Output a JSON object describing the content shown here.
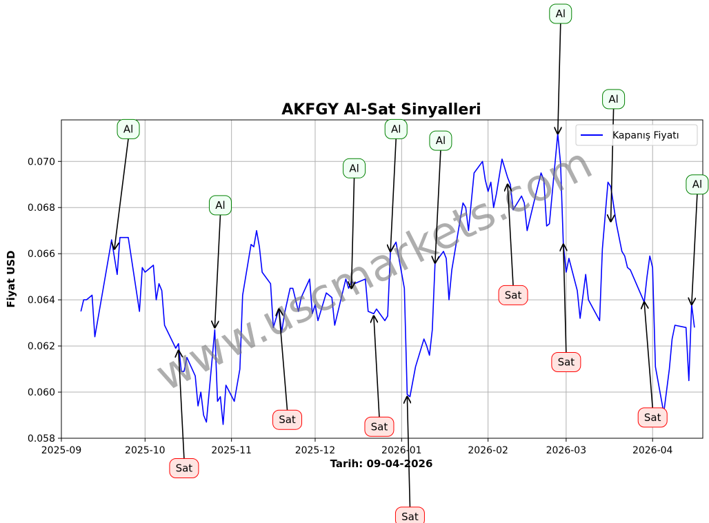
{
  "chart_data": {
    "type": "line",
    "title": "AKFGY Al-Sat Sinyalleri",
    "xlabel": "Tarih: 09-04-2026",
    "ylabel": "Fiyat USD",
    "grid": true,
    "legend_position": "top-right",
    "ylim": [
      0.058,
      0.0718
    ],
    "xlim": [
      "2025-09-01",
      "2026-04-19"
    ],
    "x_ticks": [
      "2025-09",
      "2025-10",
      "2025-11",
      "2025-12",
      "2026-01",
      "2026-02",
      "2026-03",
      "2026-04"
    ],
    "y_ticks": [
      "0.058",
      "0.060",
      "0.062",
      "0.064",
      "0.066",
      "0.068",
      "0.070"
    ],
    "series": [
      {
        "name": "Kapanış Fiyatı",
        "color": "#0000ff",
        "points": [
          [
            "2025-09-08",
            0.0635
          ],
          [
            "2025-09-09",
            0.064
          ],
          [
            "2025-09-10",
            0.064
          ],
          [
            "2025-09-12",
            0.0642
          ],
          [
            "2025-09-13",
            0.0624
          ],
          [
            "2025-09-16",
            0.0645
          ],
          [
            "2025-09-19",
            0.0666
          ],
          [
            "2025-09-21",
            0.0651
          ],
          [
            "2025-09-22",
            0.0667
          ],
          [
            "2025-09-25",
            0.0667
          ],
          [
            "2025-09-29",
            0.0635
          ],
          [
            "2025-09-30",
            0.0654
          ],
          [
            "2025-10-01",
            0.0652
          ],
          [
            "2025-10-04",
            0.0655
          ],
          [
            "2025-10-05",
            0.064
          ],
          [
            "2025-10-06",
            0.0647
          ],
          [
            "2025-10-07",
            0.0644
          ],
          [
            "2025-10-08",
            0.0629
          ],
          [
            "2025-10-12",
            0.0619
          ],
          [
            "2025-10-13",
            0.0621
          ],
          [
            "2025-10-14",
            0.0609
          ],
          [
            "2025-10-15",
            0.0609
          ],
          [
            "2025-10-16",
            0.0615
          ],
          [
            "2025-10-19",
            0.0607
          ],
          [
            "2025-10-20",
            0.0594
          ],
          [
            "2025-10-21",
            0.06
          ],
          [
            "2025-10-22",
            0.059
          ],
          [
            "2025-10-23",
            0.0587
          ],
          [
            "2025-10-26",
            0.0627
          ],
          [
            "2025-10-27",
            0.0596
          ],
          [
            "2025-10-28",
            0.0598
          ],
          [
            "2025-10-29",
            0.0586
          ],
          [
            "2025-10-30",
            0.0603
          ],
          [
            "2025-11-02",
            0.0596
          ],
          [
            "2025-11-04",
            0.061
          ],
          [
            "2025-11-05",
            0.0642
          ],
          [
            "2025-11-08",
            0.0664
          ],
          [
            "2025-11-09",
            0.0663
          ],
          [
            "2025-11-10",
            0.067
          ],
          [
            "2025-11-11",
            0.0663
          ],
          [
            "2025-11-12",
            0.0652
          ],
          [
            "2025-11-15",
            0.0647
          ],
          [
            "2025-11-16",
            0.0628
          ],
          [
            "2025-11-18",
            0.0636
          ],
          [
            "2025-11-19",
            0.0626
          ],
          [
            "2025-11-20",
            0.0634
          ],
          [
            "2025-11-22",
            0.0645
          ],
          [
            "2025-11-23",
            0.0645
          ],
          [
            "2025-11-25",
            0.0635
          ],
          [
            "2025-11-26",
            0.0641
          ],
          [
            "2025-11-29",
            0.0649
          ],
          [
            "2025-11-30",
            0.0634
          ],
          [
            "2025-12-01",
            0.0638
          ],
          [
            "2025-12-02",
            0.0631
          ],
          [
            "2025-12-05",
            0.0643
          ],
          [
            "2025-12-07",
            0.0641
          ],
          [
            "2025-12-08",
            0.0629
          ],
          [
            "2025-12-12",
            0.0649
          ],
          [
            "2025-12-13",
            0.0645
          ],
          [
            "2025-12-14",
            0.0648
          ],
          [
            "2025-12-15",
            0.0647
          ],
          [
            "2025-12-19",
            0.0649
          ],
          [
            "2025-12-20",
            0.0635
          ],
          [
            "2025-12-22",
            0.0634
          ],
          [
            "2025-12-23",
            0.0636
          ],
          [
            "2025-12-26",
            0.0631
          ],
          [
            "2025-12-27",
            0.0633
          ],
          [
            "2025-12-28",
            0.0661
          ],
          [
            "2025-12-30",
            0.0665
          ],
          [
            "2026-01-02",
            0.0645
          ],
          [
            "2026-01-03",
            0.0599
          ],
          [
            "2026-01-04",
            0.0598
          ],
          [
            "2026-01-06",
            0.0611
          ],
          [
            "2026-01-09",
            0.0623
          ],
          [
            "2026-01-10",
            0.062
          ],
          [
            "2026-01-11",
            0.0616
          ],
          [
            "2026-01-12",
            0.0627
          ],
          [
            "2026-01-13",
            0.0656
          ],
          [
            "2026-01-16",
            0.0661
          ],
          [
            "2026-01-17",
            0.0658
          ],
          [
            "2026-01-18",
            0.064
          ],
          [
            "2026-01-19",
            0.0653
          ],
          [
            "2026-01-23",
            0.0682
          ],
          [
            "2026-01-24",
            0.068
          ],
          [
            "2026-01-25",
            0.067
          ],
          [
            "2026-01-27",
            0.0695
          ],
          [
            "2026-01-30",
            0.07
          ],
          [
            "2026-01-31",
            0.0692
          ],
          [
            "2026-02-01",
            0.0687
          ],
          [
            "2026-02-02",
            0.0691
          ],
          [
            "2026-02-03",
            0.068
          ],
          [
            "2026-02-04",
            0.0686
          ],
          [
            "2026-02-06",
            0.0701
          ],
          [
            "2026-02-08",
            0.0693
          ],
          [
            "2026-02-09",
            0.069
          ],
          [
            "2026-02-10",
            0.0679
          ],
          [
            "2026-02-13",
            0.0685
          ],
          [
            "2026-02-14",
            0.0682
          ],
          [
            "2026-02-15",
            0.067
          ],
          [
            "2026-02-17",
            0.068
          ],
          [
            "2026-02-20",
            0.0695
          ],
          [
            "2026-02-21",
            0.0692
          ],
          [
            "2026-02-22",
            0.0672
          ],
          [
            "2026-02-23",
            0.0673
          ],
          [
            "2026-02-26",
            0.0712
          ],
          [
            "2026-02-27",
            0.0699
          ],
          [
            "2026-02-28",
            0.0664
          ],
          [
            "2026-03-01",
            0.0652
          ],
          [
            "2026-03-02",
            0.0658
          ],
          [
            "2026-03-05",
            0.0644
          ],
          [
            "2026-03-06",
            0.0632
          ],
          [
            "2026-03-08",
            0.0651
          ],
          [
            "2026-03-09",
            0.064
          ],
          [
            "2026-03-13",
            0.0631
          ],
          [
            "2026-03-14",
            0.0662
          ],
          [
            "2026-03-16",
            0.0691
          ],
          [
            "2026-03-17",
            0.0689
          ],
          [
            "2026-03-19",
            0.0673
          ],
          [
            "2026-03-21",
            0.0661
          ],
          [
            "2026-03-22",
            0.0659
          ],
          [
            "2026-03-23",
            0.0654
          ],
          [
            "2026-03-24",
            0.0653
          ],
          [
            "2026-03-29",
            0.0639
          ],
          [
            "2026-03-30",
            0.065
          ],
          [
            "2026-03-31",
            0.0659
          ],
          [
            "2026-04-01",
            0.0654
          ],
          [
            "2026-04-02",
            0.0611
          ],
          [
            "2026-04-05",
            0.0591
          ],
          [
            "2026-04-07",
            0.061
          ],
          [
            "2026-04-08",
            0.0623
          ],
          [
            "2026-04-09",
            0.0629
          ],
          [
            "2026-04-13",
            0.0628
          ],
          [
            "2026-04-14",
            0.0605
          ],
          [
            "2026-04-15",
            0.0638
          ],
          [
            "2026-04-16",
            0.0628
          ]
        ]
      }
    ],
    "annotations": [
      {
        "text": "Al",
        "kind": "buy",
        "x": "2025-09-20",
        "y": 0.0662,
        "text_x": "2025-09-25",
        "text_y": 0.0714
      },
      {
        "text": "Sat",
        "kind": "sell",
        "x": "2025-10-13",
        "y": 0.0618,
        "text_x": "2025-10-15",
        "text_y": 0.0567
      },
      {
        "text": "Al",
        "kind": "buy",
        "x": "2025-10-26",
        "y": 0.0628,
        "text_x": "2025-10-28",
        "text_y": 0.0681
      },
      {
        "text": "Sat",
        "kind": "sell",
        "x": "2025-11-18",
        "y": 0.0636,
        "text_x": "2025-11-21",
        "text_y": 0.0588
      },
      {
        "text": "Al",
        "kind": "buy",
        "x": "2025-12-14",
        "y": 0.0645,
        "text_x": "2025-12-15",
        "text_y": 0.0697
      },
      {
        "text": "Sat",
        "kind": "sell",
        "x": "2025-12-22",
        "y": 0.0633,
        "text_x": "2025-12-24",
        "text_y": 0.0585
      },
      {
        "text": "Al",
        "kind": "buy",
        "x": "2025-12-28",
        "y": 0.0661,
        "text_x": "2025-12-30",
        "text_y": 0.0714
      },
      {
        "text": "Sat",
        "kind": "sell",
        "x": "2026-01-03",
        "y": 0.0598,
        "text_x": "2026-01-04",
        "text_y": 0.0546
      },
      {
        "text": "Al",
        "kind": "buy",
        "x": "2026-01-13",
        "y": 0.0656,
        "text_x": "2026-01-15",
        "text_y": 0.0709
      },
      {
        "text": "Sat",
        "kind": "sell",
        "x": "2026-02-08",
        "y": 0.069,
        "text_x": "2026-02-10",
        "text_y": 0.0642
      },
      {
        "text": "Al",
        "kind": "buy",
        "x": "2026-02-26",
        "y": 0.0712,
        "text_x": "2026-02-27",
        "text_y": 0.0764
      },
      {
        "text": "Sat",
        "kind": "sell",
        "x": "2026-02-28",
        "y": 0.0664,
        "text_x": "2026-03-01",
        "text_y": 0.0613
      },
      {
        "text": "Al",
        "kind": "buy",
        "x": "2026-03-17",
        "y": 0.0674,
        "text_x": "2026-03-18",
        "text_y": 0.0727
      },
      {
        "text": "Sat",
        "kind": "sell",
        "x": "2026-03-29",
        "y": 0.0639,
        "text_x": "2026-04-01",
        "text_y": 0.0589
      },
      {
        "text": "Al",
        "kind": "buy",
        "x": "2026-04-15",
        "y": 0.0638,
        "text_x": "2026-04-17",
        "text_y": 0.069
      }
    ],
    "watermark": "www.uscmarkets.com",
    "colors": {
      "line": "#0000ff",
      "buy_border": "#008000",
      "buy_fill": "#f0fff4",
      "sell_border": "#ff0000",
      "sell_fill": "#ffe4e1",
      "grid": "#b0b0b0"
    }
  }
}
